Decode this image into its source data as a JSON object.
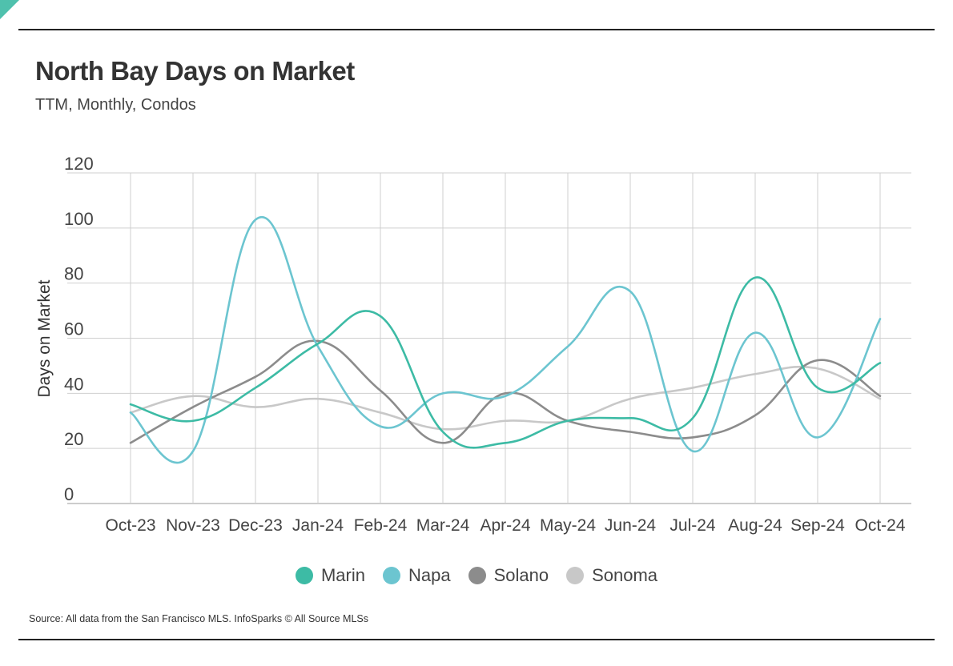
{
  "header": {
    "title": "North Bay Days on Market",
    "subtitle": "TTM, Monthly, Condos"
  },
  "footer": {
    "source": "Source:  All data from the San Francisco MLS. InfoSparks © All Source MLSs"
  },
  "chart_data": {
    "type": "line",
    "title": "North Bay Days on Market",
    "subtitle": "TTM, Monthly, Condos",
    "xlabel": "",
    "ylabel": "Days on Market",
    "ylim": [
      0,
      120
    ],
    "yticks": [
      0,
      20,
      40,
      60,
      80,
      100,
      120
    ],
    "grid": true,
    "legend_position": "bottom",
    "categories": [
      "Oct-23",
      "Nov-23",
      "Dec-23",
      "Jan-24",
      "Feb-24",
      "Mar-24",
      "Apr-24",
      "May-24",
      "Jun-24",
      "Jul-24",
      "Aug-24",
      "Sep-24",
      "Oct-24"
    ],
    "series": [
      {
        "name": "Marin",
        "color": "#3dbba5",
        "values": [
          36,
          30,
          42,
          58,
          68,
          26,
          22,
          30,
          31,
          31,
          82,
          42,
          51
        ]
      },
      {
        "name": "Napa",
        "color": "#6cc5d0",
        "values": [
          33,
          19,
          103,
          57,
          28,
          40,
          39,
          57,
          77,
          19,
          62,
          24,
          67
        ]
      },
      {
        "name": "Solano",
        "color": "#8c8c8c",
        "values": [
          22,
          35,
          46,
          59,
          41,
          22,
          40,
          30,
          26,
          24,
          32,
          52,
          39
        ]
      },
      {
        "name": "Sonoma",
        "color": "#c8c8c8",
        "values": [
          33,
          39,
          35,
          38,
          33,
          27,
          30,
          30,
          38,
          42,
          47,
          49,
          38
        ]
      }
    ]
  }
}
